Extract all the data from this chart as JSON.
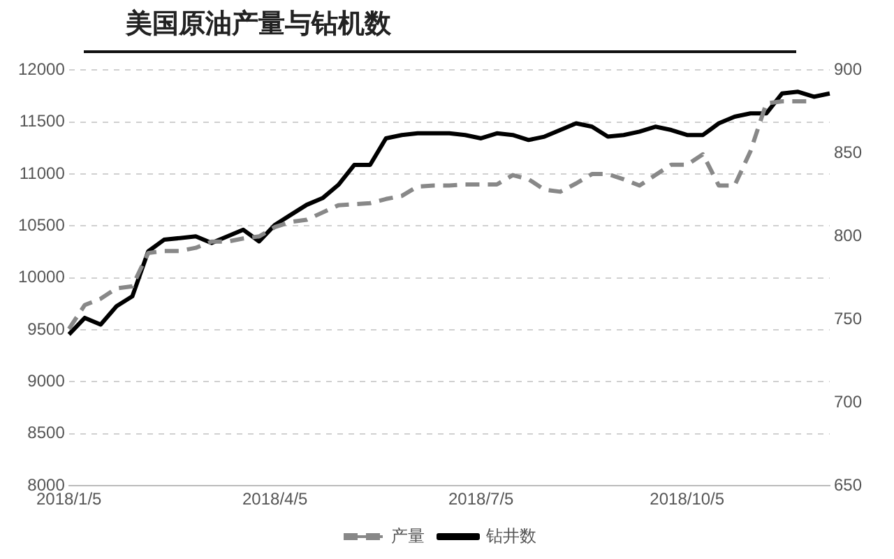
{
  "chart_data": {
    "type": "line",
    "title": "美国原油产量与钻机数",
    "categories": [
      "2018/1/5",
      null,
      null,
      null,
      null,
      null,
      null,
      null,
      null,
      null,
      null,
      null,
      null,
      "2018/4/5",
      null,
      null,
      null,
      null,
      null,
      null,
      null,
      null,
      null,
      null,
      null,
      null,
      "2018/7/5",
      null,
      null,
      null,
      null,
      null,
      null,
      null,
      null,
      null,
      null,
      null,
      null,
      "2018/10/5",
      null,
      null,
      null,
      null,
      null,
      null,
      null,
      null,
      null
    ],
    "series": [
      {
        "name": "产量",
        "color": "#888888",
        "line_style": "dashed",
        "values": [
          9510,
          9740,
          9800,
          9900,
          9920,
          10240,
          10260,
          10260,
          10290,
          10350,
          10350,
          10380,
          10400,
          10490,
          10540,
          10560,
          10630,
          10700,
          10710,
          10720,
          10760,
          10790,
          10880,
          10890,
          10890,
          10900,
          10900,
          10900,
          10990,
          10950,
          10850,
          10830,
          10910,
          11000,
          11000,
          10950,
          10890,
          10990,
          11090,
          11090,
          11190,
          10890,
          10890,
          11220,
          11680,
          11700,
          11700,
          11700,
          null
        ]
      },
      {
        "name": "钻井数",
        "color": "#000000",
        "axis": "y2",
        "line_style": "solid",
        "values": [
          741,
          751,
          747,
          758,
          764,
          791,
          798,
          799,
          800,
          796,
          800,
          804,
          797,
          807,
          813,
          819,
          823,
          831,
          843,
          843,
          859,
          861,
          862,
          862,
          862,
          861,
          859,
          862,
          861,
          858,
          860,
          864,
          868,
          866,
          860,
          861,
          863,
          866,
          864,
          861,
          861,
          868,
          872,
          874,
          874,
          886,
          887,
          884,
          886
        ]
      }
    ],
    "ylim": [
      8000,
      12000
    ],
    "yticks": [
      8000,
      8500,
      9000,
      9500,
      10000,
      10500,
      11000,
      11500,
      12000
    ],
    "y2lim": [
      650,
      900
    ],
    "y2ticks": [
      650,
      700,
      750,
      800,
      850,
      900
    ],
    "grid": "y",
    "legend": "bottom",
    "marker": "none"
  }
}
